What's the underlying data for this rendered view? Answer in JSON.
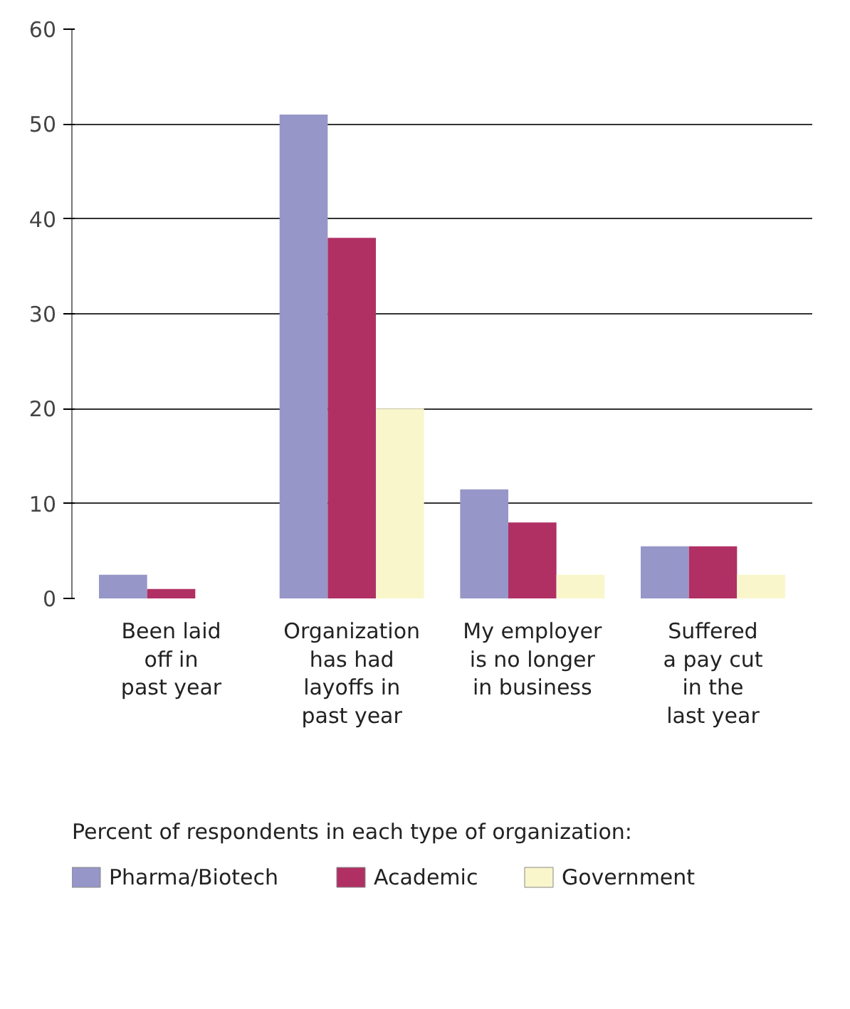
{
  "chart_data": {
    "type": "bar",
    "categories": [
      "Been laid\noff in\npast year",
      "Organization\nhas had\nlayoffs in\npast year",
      "My employer\nis no longer\nin business",
      "Suffered\na pay cut\nin the\nlast year"
    ],
    "series": [
      {
        "name": "Pharma/Biotech",
        "color": "#9696c8",
        "values": [
          2.5,
          51,
          11.5,
          5.5
        ]
      },
      {
        "name": "Academic",
        "color": "#b03064",
        "values": [
          1,
          38,
          8,
          5.5
        ]
      },
      {
        "name": "Government",
        "color": "#faf6cc",
        "values": [
          0,
          20,
          2.5,
          2.5
        ]
      }
    ],
    "legend_title": "Percent of respondents in each type of organization:",
    "ylim": [
      0,
      60
    ],
    "yticks": [
      0,
      10,
      20,
      30,
      40,
      50,
      60
    ],
    "grid": "y",
    "legend": "bottom"
  }
}
